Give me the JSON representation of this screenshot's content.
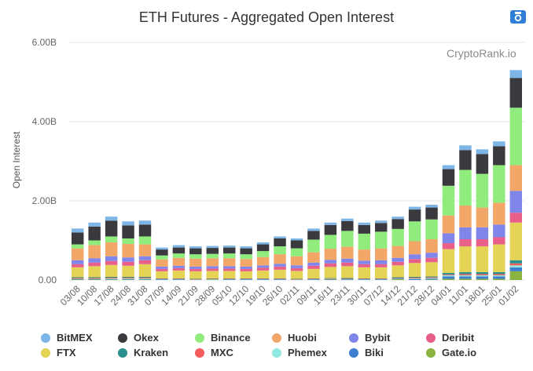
{
  "title": "ETH Futures - Aggregated Open Interest",
  "watermark": "CryptoRank.io",
  "chart_data": {
    "type": "bar",
    "stacked": true,
    "title": "ETH Futures - Aggregated Open Interest",
    "ylabel": "Open Interest",
    "xlabel": "",
    "ylim": [
      0,
      6.0
    ],
    "y_unit": "B",
    "y_ticks": [
      "0.00",
      "2.00B",
      "4.00B",
      "6.00B"
    ],
    "x_tick_labels": [
      "03/08",
      "10/08",
      "17/08",
      "24/08",
      "31/08",
      "07/09",
      "14/09",
      "21/09",
      "28/09",
      "05/10",
      "12/10",
      "19/10",
      "26/10",
      "02/11",
      "09/11",
      "16/11",
      "23/11",
      "30/11",
      "07/12",
      "14/12",
      "21/12",
      "28/12",
      "04/01",
      "11/01",
      "18/01",
      "25/01",
      "01/02"
    ],
    "grid": true,
    "legend_position": "bottom",
    "categories": [
      "03/08",
      "10/08",
      "17/08",
      "24/08",
      "31/08",
      "07/09",
      "14/09",
      "21/09",
      "28/09",
      "05/10",
      "12/10",
      "19/10",
      "26/10",
      "02/11",
      "09/11",
      "16/11",
      "23/11",
      "30/11",
      "07/12",
      "14/12",
      "21/12",
      "28/12",
      "04/01",
      "11/01",
      "18/01",
      "25/01",
      "01/02"
    ],
    "total_open_interest": [
      1.3,
      1.45,
      1.6,
      1.48,
      1.5,
      0.82,
      0.88,
      0.85,
      0.86,
      0.87,
      0.85,
      0.95,
      1.1,
      1.05,
      1.3,
      1.45,
      1.55,
      1.45,
      1.5,
      1.6,
      1.85,
      1.9,
      2.9,
      3.4,
      3.3,
      3.5,
      5.3
    ],
    "series": [
      {
        "name": "BitMEX",
        "color": "#7cb5e6",
        "values": [
          0.1,
          0.1,
          0.1,
          0.1,
          0.1,
          0.05,
          0.06,
          0.05,
          0.05,
          0.05,
          0.05,
          0.05,
          0.05,
          0.05,
          0.06,
          0.06,
          0.06,
          0.06,
          0.06,
          0.06,
          0.07,
          0.07,
          0.1,
          0.12,
          0.12,
          0.12,
          0.2
        ]
      },
      {
        "name": "Okex",
        "color": "#3a3a3e",
        "values": [
          0.3,
          0.35,
          0.4,
          0.33,
          0.3,
          0.15,
          0.15,
          0.15,
          0.15,
          0.15,
          0.15,
          0.17,
          0.2,
          0.2,
          0.22,
          0.25,
          0.25,
          0.22,
          0.22,
          0.25,
          0.3,
          0.3,
          0.42,
          0.5,
          0.5,
          0.48,
          0.75
        ]
      },
      {
        "name": "Binance",
        "color": "#90ed7d",
        "values": [
          0.1,
          0.12,
          0.15,
          0.14,
          0.2,
          0.1,
          0.11,
          0.11,
          0.11,
          0.12,
          0.12,
          0.15,
          0.2,
          0.2,
          0.32,
          0.35,
          0.4,
          0.4,
          0.42,
          0.43,
          0.5,
          0.5,
          0.75,
          0.9,
          0.85,
          0.95,
          1.45
        ]
      },
      {
        "name": "Huobi",
        "color": "#f2a667",
        "values": [
          0.3,
          0.33,
          0.35,
          0.34,
          0.3,
          0.18,
          0.2,
          0.2,
          0.2,
          0.2,
          0.19,
          0.21,
          0.24,
          0.23,
          0.26,
          0.28,
          0.3,
          0.28,
          0.3,
          0.3,
          0.33,
          0.34,
          0.45,
          0.55,
          0.5,
          0.55,
          0.65
        ]
      },
      {
        "name": "Bybit",
        "color": "#8085e9",
        "values": [
          0.1,
          0.11,
          0.12,
          0.11,
          0.1,
          0.06,
          0.06,
          0.06,
          0.06,
          0.06,
          0.06,
          0.06,
          0.07,
          0.07,
          0.08,
          0.09,
          0.1,
          0.09,
          0.1,
          0.1,
          0.12,
          0.13,
          0.25,
          0.3,
          0.3,
          0.32,
          0.55
        ]
      },
      {
        "name": "Deribit",
        "color": "#e8608a",
        "values": [
          0.08,
          0.09,
          0.1,
          0.1,
          0.1,
          0.06,
          0.06,
          0.06,
          0.06,
          0.06,
          0.06,
          0.07,
          0.08,
          0.07,
          0.08,
          0.09,
          0.09,
          0.08,
          0.08,
          0.09,
          0.1,
          0.11,
          0.15,
          0.18,
          0.18,
          0.18,
          0.25
        ]
      },
      {
        "name": "FTX",
        "color": "#e4d354",
        "values": [
          0.25,
          0.28,
          0.3,
          0.28,
          0.32,
          0.18,
          0.2,
          0.19,
          0.19,
          0.19,
          0.18,
          0.2,
          0.22,
          0.2,
          0.24,
          0.28,
          0.3,
          0.28,
          0.28,
          0.3,
          0.35,
          0.36,
          0.6,
          0.65,
          0.65,
          0.7,
          0.95
        ]
      },
      {
        "name": "Kraken",
        "color": "#2b908f",
        "values": [
          0.02,
          0.02,
          0.02,
          0.02,
          0.02,
          0.01,
          0.01,
          0.01,
          0.01,
          0.01,
          0.01,
          0.01,
          0.01,
          0.01,
          0.01,
          0.01,
          0.02,
          0.01,
          0.01,
          0.02,
          0.02,
          0.02,
          0.04,
          0.05,
          0.05,
          0.05,
          0.08
        ]
      },
      {
        "name": "MXC",
        "color": "#f45b5b",
        "values": [
          0.02,
          0.02,
          0.02,
          0.02,
          0.02,
          0.01,
          0.01,
          0.01,
          0.01,
          0.01,
          0.01,
          0.01,
          0.01,
          0.01,
          0.01,
          0.01,
          0.01,
          0.01,
          0.01,
          0.01,
          0.02,
          0.02,
          0.02,
          0.03,
          0.03,
          0.03,
          0.05
        ]
      },
      {
        "name": "Phemex",
        "color": "#91e8e1",
        "values": [
          0.01,
          0.01,
          0.02,
          0.02,
          0.02,
          0.01,
          0.01,
          0.01,
          0.01,
          0.01,
          0.01,
          0.01,
          0.01,
          0.01,
          0.01,
          0.01,
          0.01,
          0.01,
          0.01,
          0.01,
          0.02,
          0.02,
          0.03,
          0.03,
          0.03,
          0.03,
          0.05
        ]
      },
      {
        "name": "Biki",
        "color": "#3f7fcf",
        "values": [
          0.01,
          0.01,
          0.01,
          0.01,
          0.01,
          0.01,
          0.01,
          0.0,
          0.0,
          0.01,
          0.01,
          0.01,
          0.01,
          0.0,
          0.01,
          0.01,
          0.01,
          0.01,
          0.01,
          0.01,
          0.02,
          0.02,
          0.06,
          0.06,
          0.06,
          0.06,
          0.1
        ]
      },
      {
        "name": "Gate.io",
        "color": "#8ab33f",
        "values": [
          0.01,
          0.01,
          0.01,
          0.01,
          0.01,
          0.0,
          0.0,
          0.0,
          0.01,
          0.0,
          0.0,
          0.0,
          0.0,
          0.0,
          0.0,
          0.01,
          0.0,
          0.0,
          0.0,
          0.02,
          0.0,
          0.01,
          0.03,
          0.03,
          0.03,
          0.03,
          0.22
        ]
      }
    ]
  },
  "legend": {
    "rows": [
      [
        {
          "label": "BitMEX",
          "color": "#7cb5e6"
        },
        {
          "label": "Okex",
          "color": "#3a3a3e"
        },
        {
          "label": "Binance",
          "color": "#90ed7d"
        },
        {
          "label": "Huobi",
          "color": "#f2a667"
        },
        {
          "label": "Bybit",
          "color": "#8085e9"
        },
        {
          "label": "Deribit",
          "color": "#e8608a"
        }
      ],
      [
        {
          "label": "FTX",
          "color": "#e4d354"
        },
        {
          "label": "Kraken",
          "color": "#2b908f"
        },
        {
          "label": "MXC",
          "color": "#f45b5b"
        },
        {
          "label": "Phemex",
          "color": "#91e8e1"
        },
        {
          "label": "Biki",
          "color": "#3f7fcf"
        },
        {
          "label": "Gate.io",
          "color": "#8ab33f"
        }
      ]
    ]
  },
  "icons": {
    "export": "camera-icon"
  },
  "colors": {
    "camera": "#2f7ed8",
    "grid": "#e6e6e6",
    "axis_text": "#666666"
  }
}
